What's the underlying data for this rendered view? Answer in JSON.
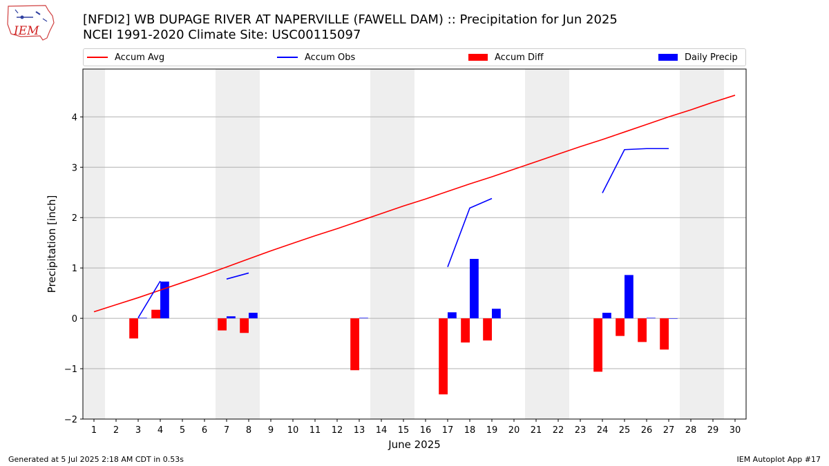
{
  "title_line1": "[NFDI2] WB DUPAGE RIVER AT NAPERVILLE (FAWELL DAM) :: Precipitation for Jun 2025",
  "title_line2": "NCEI 1991-2020 Climate Site: USC00115097",
  "legend": {
    "accum_avg": "Accum Avg",
    "accum_obs": "Accum Obs",
    "accum_diff": "Accum Diff",
    "daily_precip": "Daily Precip"
  },
  "footer_left": "Generated at 5 Jul 2025 2:18 AM CDT in 0.53s",
  "footer_right": "IEM Autoplot App #17",
  "logo_text": "IEM",
  "colors": {
    "avg": "#ff0000",
    "obs": "#0000ff",
    "diff": "#ff0000",
    "daily": "#0000ff",
    "weekend": "#eeeeee",
    "grid": "#b0b0b0"
  },
  "chart_data": {
    "type": "bar",
    "xlabel": "June 2025",
    "ylabel": "Precipitation [inch]",
    "ylim": [
      -2,
      4.95
    ],
    "xlim": [
      0.5,
      30.5
    ],
    "yticks": [
      -2,
      -1,
      0,
      1,
      2,
      3,
      4
    ],
    "ytick_labels": [
      "−2",
      "−1",
      "0",
      "1",
      "2",
      "3",
      "4"
    ],
    "days": [
      1,
      2,
      3,
      4,
      5,
      6,
      7,
      8,
      9,
      10,
      11,
      12,
      13,
      14,
      15,
      16,
      17,
      18,
      19,
      20,
      21,
      22,
      23,
      24,
      25,
      26,
      27,
      28,
      29,
      30
    ],
    "shaded_days": [
      1,
      7,
      8,
      14,
      15,
      21,
      22,
      28,
      29
    ],
    "grid": true,
    "series": [
      {
        "name": "Accum Avg",
        "kind": "line",
        "values": [
          0.13,
          0.27,
          0.41,
          0.56,
          0.71,
          0.86,
          1.02,
          1.18,
          1.34,
          1.49,
          1.64,
          1.78,
          1.93,
          2.08,
          2.23,
          2.37,
          2.52,
          2.67,
          2.81,
          2.96,
          3.11,
          3.26,
          3.41,
          3.55,
          3.7,
          3.85,
          4.0,
          4.14,
          4.29,
          4.43
        ]
      },
      {
        "name": "Accum Obs",
        "kind": "line",
        "segments": [
          {
            "x": [
              3,
              4
            ],
            "y": [
              0.01,
              0.74
            ]
          },
          {
            "x": [
              7,
              8
            ],
            "y": [
              0.78,
              0.9
            ]
          },
          {
            "x": [
              17,
              18,
              19
            ],
            "y": [
              1.02,
              2.19,
              2.38
            ]
          },
          {
            "x": [
              24,
              25,
              26,
              27
            ],
            "y": [
              2.49,
              3.35,
              3.37,
              3.37
            ]
          }
        ]
      },
      {
        "name": "Accum Diff",
        "kind": "bar",
        "x": [
          3,
          4,
          7,
          8,
          13,
          17,
          18,
          19,
          24,
          25,
          26,
          27
        ],
        "values": [
          -0.4,
          0.17,
          -0.24,
          -0.29,
          -1.03,
          -1.51,
          -0.48,
          -0.44,
          -1.06,
          -0.35,
          -0.47,
          -0.62
        ]
      },
      {
        "name": "Daily Precip",
        "kind": "bar",
        "x": [
          3,
          4,
          7,
          8,
          13,
          17,
          18,
          19,
          24,
          25,
          26,
          27
        ],
        "values": [
          0.01,
          0.73,
          0.04,
          0.11,
          0.01,
          0.12,
          1.18,
          0.19,
          0.11,
          0.86,
          0.01,
          0.0
        ]
      }
    ]
  }
}
